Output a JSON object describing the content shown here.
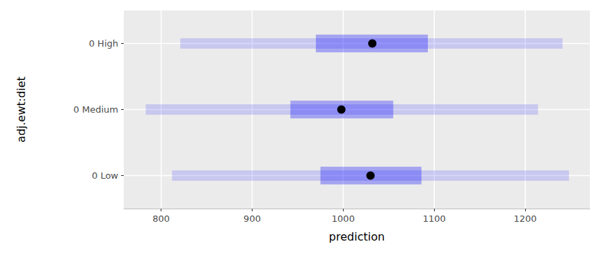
{
  "chart_data": {
    "type": "interval",
    "orientation": "horizontal",
    "x_label": "prediction",
    "y_label": "adj.ewt:diet",
    "categories": [
      "0 Low",
      "0 Medium",
      "0 High"
    ],
    "values": [
      1030,
      998,
      1032
    ],
    "inner_lower": [
      975,
      942,
      970
    ],
    "inner_upper": [
      1086,
      1055,
      1093
    ],
    "outer_lower": [
      812,
      783,
      821
    ],
    "outer_upper": [
      1248,
      1214,
      1241
    ],
    "color": "#0000ff",
    "xlim": [
      759,
      1271
    ],
    "xticks": [
      800,
      900,
      1000,
      1100,
      1200
    ],
    "grid": true
  }
}
